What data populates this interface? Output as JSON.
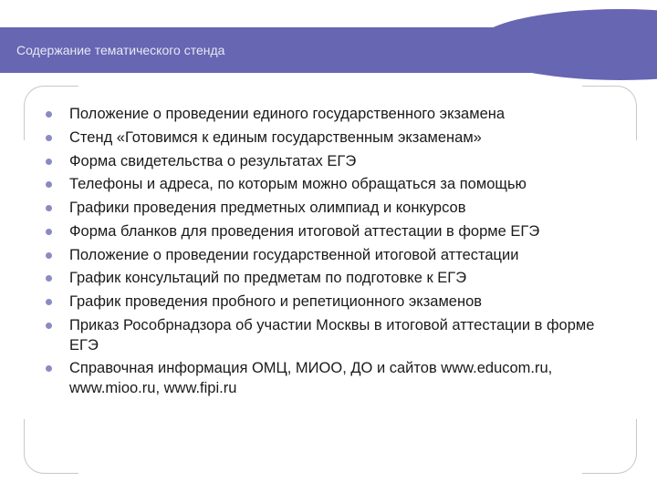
{
  "slide": {
    "title": "Содержание тематического стенда",
    "header_band_color": "#6666b3",
    "header_text_color": "#e8e8f4",
    "header_fontsize": 14,
    "bullet_color": "#8a8ac4",
    "body_text_color": "#1a1a1a",
    "body_fontsize": 16.5,
    "corner_border_color": "#c8c8c8",
    "background_color": "#ffffff",
    "bullets": [
      "Положение о проведении единого государственного экзамена",
      "Стенд «Готовимся к единым государственным экзаменам»",
      "Форма свидетельства о результатах ЕГЭ",
      "Телефоны и адреса, по которым можно обращаться за помощью",
      "Графики проведения предметных олимпиад и конкурсов",
      "Форма бланков для проведения итоговой аттестации в форме ЕГЭ",
      "Положение о проведении государственной итоговой аттестации",
      "График консультаций по предметам по подготовке к ЕГЭ",
      "График проведения пробного и репетиционного экзаменов",
      "Приказ Рособрнадзора об участии Москвы в итоговой аттестации в форме ЕГЭ",
      "Справочная информация ОМЦ, МИОО, ДО и сайтов www.educom.ru, www.mioo.ru, www.fipi.ru"
    ]
  }
}
